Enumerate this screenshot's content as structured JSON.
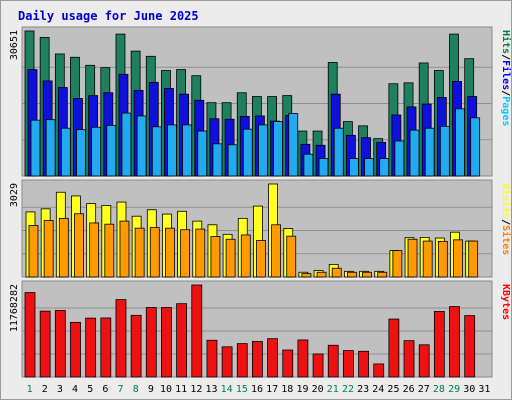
{
  "chart_data": {
    "type": "bar",
    "title": "Daily usage for June 2025",
    "categories": [
      "1",
      "2",
      "3",
      "4",
      "5",
      "6",
      "7",
      "8",
      "9",
      "10",
      "11",
      "12",
      "13",
      "14",
      "15",
      "16",
      "17",
      "18",
      "19",
      "20",
      "21",
      "22",
      "23",
      "24",
      "25",
      "26",
      "27",
      "28",
      "29",
      "30",
      "31"
    ],
    "weekend_days": [
      "1",
      "7",
      "8",
      "14",
      "15",
      "21",
      "22",
      "28",
      "29"
    ],
    "panels": [
      {
        "id": "hits-files-pages",
        "max_label": "30651",
        "scale_max": 30651,
        "legend": [
          "Pages",
          "Files",
          "Hits"
        ],
        "legend_colors": [
          "#00ccff",
          "#0000ff",
          "#008040"
        ],
        "series": [
          {
            "name": "Hits",
            "color": "#1f8060",
            "values": [
              30651,
              29300,
              25800,
              25100,
              23400,
              22900,
              30000,
              26400,
              25300,
              22300,
              22500,
              21200,
              15500,
              15500,
              17600,
              16800,
              16800,
              17000,
              9500,
              9500,
              24000,
              11500,
              10600,
              7900,
              19500,
              19700,
              23900,
              22300,
              30000,
              24800,
              0
            ]
          },
          {
            "name": "Files",
            "color": "#1010dd",
            "values": [
              22500,
              20100,
              18700,
              16400,
              17000,
              17600,
              21500,
              18100,
              19800,
              18500,
              17300,
              16000,
              12100,
              12000,
              12600,
              12700,
              11600,
              12800,
              6700,
              6500,
              17300,
              8600,
              8100,
              7100,
              12900,
              14600,
              15200,
              16600,
              20000,
              16800,
              0
            ]
          },
          {
            "name": "Pages",
            "color": "#22aaee",
            "values": [
              11800,
              11900,
              10100,
              9800,
              10300,
              10700,
              13300,
              12700,
              10400,
              10800,
              10800,
              9500,
              6800,
              6600,
              9900,
              10800,
              11500,
              13200,
              4600,
              3700,
              10100,
              3700,
              3700,
              3700,
              7400,
              9700,
              10100,
              10500,
              14200,
              12300,
              0
            ]
          }
        ]
      },
      {
        "id": "visits-sites",
        "max_label": "3029",
        "scale_max": 3029,
        "legend": [
          "Sites",
          "Visits"
        ],
        "legend_colors": [
          "#ff8000",
          "#ffff00"
        ],
        "series": [
          {
            "name": "Visits",
            "color": "#ffff20",
            "values": [
              2120,
              2220,
              2760,
              2640,
              2390,
              2330,
              2440,
              1980,
              2190,
              2050,
              2140,
              1820,
              1700,
              1390,
              1910,
              2310,
              3029,
              1580,
              155,
              210,
              410,
              185,
              185,
              185,
              860,
              1280,
              1290,
              1270,
              1460,
              1170,
              0
            ]
          },
          {
            "name": "Sites",
            "color": "#ff9a00",
            "values": [
              1680,
              1840,
              1910,
              2060,
              1760,
              1720,
              1820,
              1590,
              1610,
              1590,
              1540,
              1560,
              1320,
              1230,
              1370,
              1190,
              1700,
              1330,
              110,
              155,
              285,
              155,
              155,
              155,
              860,
              1230,
              1170,
              1160,
              1210,
              1170,
              0
            ]
          }
        ]
      },
      {
        "id": "kbytes",
        "max_label": "11768282",
        "scale_max": 11768282,
        "legend": [
          "KBytes"
        ],
        "legend_colors": [
          "#ff0000"
        ],
        "series": [
          {
            "name": "KBytes",
            "color": "#ee1111",
            "values": [
              10800000,
              8430000,
              8510000,
              6990000,
              7530000,
              7550000,
              9900000,
              7890000,
              8890000,
              8890000,
              9380000,
              11768282,
              4700000,
              3860000,
              4270000,
              4540000,
              4900000,
              3450000,
              4740000,
              2950000,
              4060000,
              3380000,
              3290000,
              1670000,
              7410000,
              4650000,
              4120000,
              8390000,
              9010000,
              7850000,
              0
            ]
          }
        ]
      }
    ],
    "grid": true,
    "legend_placement": "right"
  }
}
